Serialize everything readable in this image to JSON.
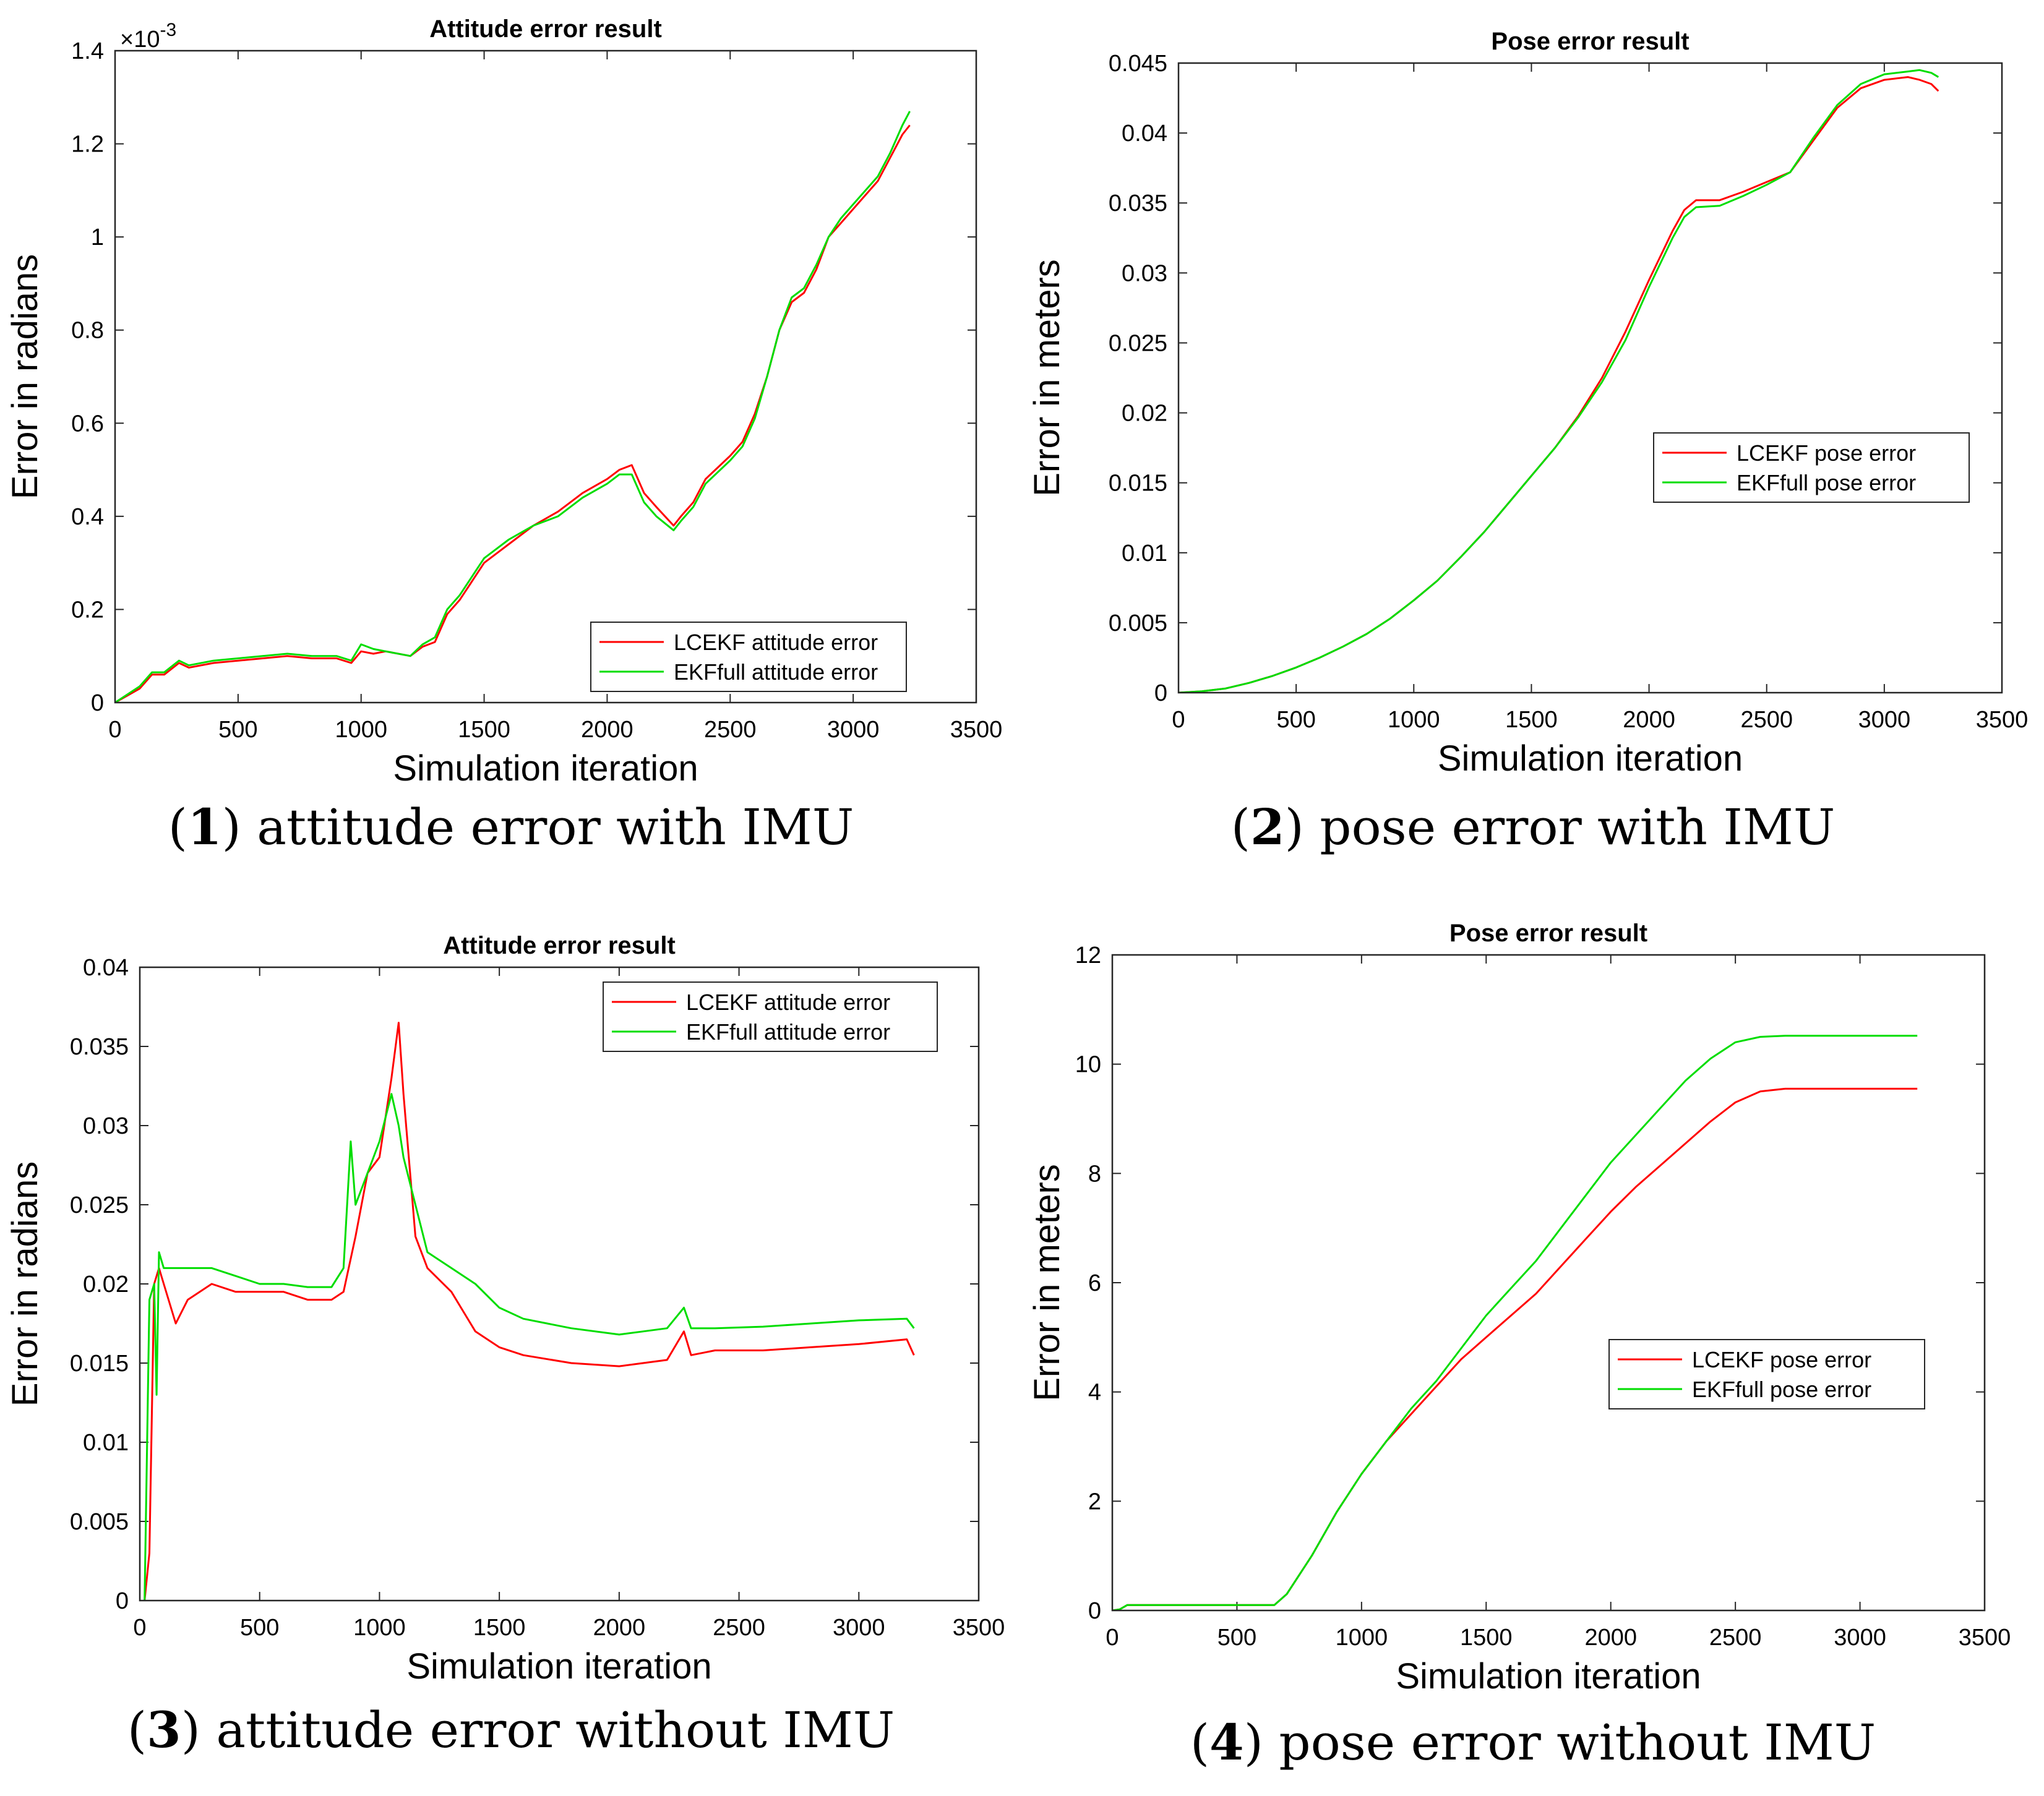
{
  "chart_data": [
    {
      "id": "c1",
      "type": "line",
      "title": "Attitude error result",
      "xlabel": "Simulation iteration",
      "ylabel": "Error in radians",
      "xlim": [
        0,
        3500
      ],
      "ylim": [
        0,
        1.4
      ],
      "xticks": [
        0,
        500,
        1000,
        1500,
        2000,
        2500,
        3000,
        3500
      ],
      "xticklabels": [
        "0",
        "500",
        "1000",
        "1500",
        "2000",
        "2500",
        "3000",
        "3500"
      ],
      "yticks": [
        0,
        0.2,
        0.4,
        0.6,
        0.8,
        1.0,
        1.2,
        1.4
      ],
      "yticklabels": [
        "0",
        "0.2",
        "0.4",
        "0.6",
        "0.8",
        "1",
        "1.2",
        "1.4"
      ],
      "exponent_label": "×10",
      "exponent_power": "-3",
      "legend_position": "bottom-right",
      "caption_num": "1",
      "caption_text": "attitude error with IMU",
      "series": [
        {
          "name": "LCEKF attitude error",
          "color": "#ff0000",
          "x": [
            0,
            100,
            150,
            200,
            260,
            300,
            400,
            500,
            600,
            700,
            800,
            900,
            960,
            1000,
            1050,
            1100,
            1200,
            1250,
            1300,
            1350,
            1400,
            1450,
            1500,
            1600,
            1700,
            1800,
            1850,
            1900,
            2000,
            2050,
            2100,
            2150,
            2200,
            2270,
            2300,
            2350,
            2400,
            2500,
            2550,
            2600,
            2650,
            2700,
            2750,
            2800,
            2850,
            2900,
            2950,
            3000,
            3050,
            3100,
            3150,
            3200,
            3230
          ],
          "y": [
            0.0,
            0.03,
            0.06,
            0.06,
            0.085,
            0.075,
            0.085,
            0.09,
            0.095,
            0.1,
            0.095,
            0.095,
            0.085,
            0.11,
            0.105,
            0.11,
            0.1,
            0.12,
            0.13,
            0.19,
            0.22,
            0.26,
            0.3,
            0.34,
            0.38,
            0.41,
            0.43,
            0.45,
            0.48,
            0.5,
            0.51,
            0.45,
            0.42,
            0.38,
            0.4,
            0.43,
            0.48,
            0.53,
            0.56,
            0.62,
            0.7,
            0.8,
            0.86,
            0.88,
            0.93,
            1.0,
            1.03,
            1.06,
            1.09,
            1.12,
            1.17,
            1.22,
            1.24
          ]
        },
        {
          "name": "EKFfull attitude error",
          "color": "#00dd00",
          "x": [
            0,
            100,
            150,
            200,
            260,
            300,
            400,
            500,
            600,
            700,
            800,
            900,
            960,
            1000,
            1050,
            1100,
            1200,
            1250,
            1300,
            1350,
            1400,
            1450,
            1500,
            1600,
            1700,
            1800,
            1850,
            1900,
            2000,
            2050,
            2100,
            2150,
            2200,
            2270,
            2300,
            2350,
            2400,
            2500,
            2550,
            2600,
            2650,
            2700,
            2750,
            2800,
            2850,
            2900,
            2950,
            3000,
            3050,
            3100,
            3150,
            3200,
            3230
          ],
          "y": [
            0.0,
            0.035,
            0.065,
            0.065,
            0.09,
            0.08,
            0.09,
            0.095,
            0.1,
            0.105,
            0.1,
            0.1,
            0.09,
            0.125,
            0.115,
            0.11,
            0.1,
            0.125,
            0.14,
            0.2,
            0.23,
            0.27,
            0.31,
            0.35,
            0.38,
            0.4,
            0.42,
            0.44,
            0.47,
            0.49,
            0.49,
            0.43,
            0.4,
            0.37,
            0.39,
            0.42,
            0.47,
            0.52,
            0.55,
            0.61,
            0.7,
            0.8,
            0.87,
            0.89,
            0.94,
            1.0,
            1.04,
            1.07,
            1.1,
            1.13,
            1.18,
            1.24,
            1.27
          ]
        }
      ]
    },
    {
      "id": "c2",
      "type": "line",
      "title": "Pose error result",
      "xlabel": "Simulation iteration",
      "ylabel": "Error in meters",
      "xlim": [
        0,
        3500
      ],
      "ylim": [
        0,
        0.045
      ],
      "xticks": [
        0,
        500,
        1000,
        1500,
        2000,
        2500,
        3000,
        3500
      ],
      "xticklabels": [
        "0",
        "500",
        "1000",
        "1500",
        "2000",
        "2500",
        "3000",
        "3500"
      ],
      "yticks": [
        0,
        0.005,
        0.01,
        0.015,
        0.02,
        0.025,
        0.03,
        0.035,
        0.04,
        0.045
      ],
      "yticklabels": [
        "0",
        "0.005",
        "0.01",
        "0.015",
        "0.02",
        "0.025",
        "0.03",
        "0.035",
        "0.04",
        "0.045"
      ],
      "legend_position": "right",
      "caption_num": "2",
      "caption_text": "pose error with IMU",
      "series": [
        {
          "name": "LCEKF pose error",
          "color": "#ff0000",
          "x": [
            0,
            100,
            200,
            300,
            400,
            500,
            600,
            700,
            800,
            900,
            1000,
            1100,
            1200,
            1300,
            1400,
            1500,
            1600,
            1700,
            1800,
            1900,
            2000,
            2100,
            2150,
            2200,
            2300,
            2400,
            2500,
            2600,
            2700,
            2800,
            2900,
            3000,
            3100,
            3150,
            3200,
            3230
          ],
          "y": [
            0,
            0.0001,
            0.0003,
            0.0007,
            0.0012,
            0.0018,
            0.0025,
            0.0033,
            0.0042,
            0.0053,
            0.0066,
            0.008,
            0.0097,
            0.0115,
            0.0135,
            0.0155,
            0.0175,
            0.0198,
            0.0225,
            0.0258,
            0.0295,
            0.033,
            0.0345,
            0.0352,
            0.0352,
            0.0358,
            0.0365,
            0.0372,
            0.0395,
            0.0418,
            0.0432,
            0.0438,
            0.044,
            0.0438,
            0.0435,
            0.043
          ]
        },
        {
          "name": "EKFfull pose error",
          "color": "#00dd00",
          "x": [
            0,
            100,
            200,
            300,
            400,
            500,
            600,
            700,
            800,
            900,
            1000,
            1100,
            1200,
            1300,
            1400,
            1500,
            1600,
            1700,
            1800,
            1900,
            2000,
            2100,
            2150,
            2200,
            2300,
            2400,
            2500,
            2600,
            2700,
            2800,
            2900,
            3000,
            3100,
            3150,
            3200,
            3230
          ],
          "y": [
            0,
            0.0001,
            0.0003,
            0.0007,
            0.0012,
            0.0018,
            0.0025,
            0.0033,
            0.0042,
            0.0053,
            0.0066,
            0.008,
            0.0097,
            0.0115,
            0.0135,
            0.0155,
            0.0175,
            0.0197,
            0.0222,
            0.0252,
            0.029,
            0.0325,
            0.034,
            0.0347,
            0.0348,
            0.0355,
            0.0363,
            0.0372,
            0.0397,
            0.042,
            0.0435,
            0.0442,
            0.0444,
            0.0445,
            0.0443,
            0.044
          ]
        }
      ]
    },
    {
      "id": "c3",
      "type": "line",
      "title": "Attitude error result",
      "xlabel": "Simulation iteration",
      "ylabel": "Error in radians",
      "xlim": [
        0,
        3500
      ],
      "ylim": [
        0,
        0.04
      ],
      "xticks": [
        0,
        500,
        1000,
        1500,
        2000,
        2500,
        3000,
        3500
      ],
      "xticklabels": [
        "0",
        "500",
        "1000",
        "1500",
        "2000",
        "2500",
        "3000",
        "3500"
      ],
      "yticks": [
        0,
        0.005,
        0.01,
        0.015,
        0.02,
        0.025,
        0.03,
        0.035,
        0.04
      ],
      "yticklabels": [
        "0",
        "0.005",
        "0.01",
        "0.015",
        "0.02",
        "0.025",
        "0.03",
        "0.035",
        "0.04"
      ],
      "legend_position": "top-right",
      "caption_num": "3",
      "caption_text": "attitude error without IMU",
      "series": [
        {
          "name": "LCEKF attitude error",
          "color": "#ff0000",
          "x": [
            20,
            40,
            60,
            80,
            100,
            150,
            200,
            300,
            400,
            500,
            600,
            700,
            800,
            850,
            900,
            950,
            1000,
            1050,
            1080,
            1100,
            1150,
            1200,
            1300,
            1400,
            1500,
            1600,
            1800,
            2000,
            2100,
            2200,
            2270,
            2300,
            2400,
            2600,
            2800,
            3000,
            3200,
            3230
          ],
          "y": [
            0.0,
            0.003,
            0.02,
            0.021,
            0.02,
            0.0175,
            0.019,
            0.02,
            0.0195,
            0.0195,
            0.0195,
            0.019,
            0.019,
            0.0195,
            0.023,
            0.027,
            0.028,
            0.033,
            0.0365,
            0.032,
            0.023,
            0.021,
            0.0195,
            0.017,
            0.016,
            0.0155,
            0.015,
            0.0148,
            0.015,
            0.0152,
            0.017,
            0.0155,
            0.0158,
            0.0158,
            0.016,
            0.0162,
            0.0165,
            0.0155
          ]
        },
        {
          "name": "EKFfull attitude error",
          "color": "#00dd00",
          "x": [
            20,
            40,
            60,
            70,
            80,
            100,
            150,
            200,
            300,
            400,
            500,
            600,
            700,
            800,
            850,
            880,
            900,
            950,
            1000,
            1050,
            1080,
            1100,
            1150,
            1200,
            1300,
            1400,
            1500,
            1600,
            1800,
            2000,
            2100,
            2200,
            2270,
            2300,
            2400,
            2600,
            2800,
            3000,
            3200,
            3230
          ],
          "y": [
            0.0,
            0.019,
            0.02,
            0.013,
            0.022,
            0.021,
            0.021,
            0.021,
            0.021,
            0.0205,
            0.02,
            0.02,
            0.0198,
            0.0198,
            0.021,
            0.029,
            0.025,
            0.027,
            0.029,
            0.032,
            0.03,
            0.028,
            0.025,
            0.022,
            0.021,
            0.02,
            0.0185,
            0.0178,
            0.0172,
            0.0168,
            0.017,
            0.0172,
            0.0185,
            0.0172,
            0.0172,
            0.0173,
            0.0175,
            0.0177,
            0.0178,
            0.0172
          ]
        }
      ]
    },
    {
      "id": "c4",
      "type": "line",
      "title": "Pose error result",
      "xlabel": "Simulation iteration",
      "ylabel": "Error in meters",
      "xlim": [
        0,
        3500
      ],
      "ylim": [
        0,
        12
      ],
      "xticks": [
        0,
        500,
        1000,
        1500,
        2000,
        2500,
        3000,
        3500
      ],
      "xticklabels": [
        "0",
        "500",
        "1000",
        "1500",
        "2000",
        "2500",
        "3000",
        "3500"
      ],
      "yticks": [
        0,
        2,
        4,
        6,
        8,
        10,
        12
      ],
      "yticklabels": [
        "0",
        "2",
        "4",
        "6",
        "8",
        "10",
        "12"
      ],
      "legend_position": "right",
      "caption_num": "4",
      "caption_text": "pose error without IMU",
      "series": [
        {
          "name": "LCEKF pose error",
          "color": "#ff0000",
          "x": [
            0,
            30,
            60,
            200,
            400,
            600,
            650,
            700,
            800,
            900,
            1000,
            1100,
            1200,
            1300,
            1400,
            1500,
            1600,
            1700,
            1800,
            1900,
            2000,
            2100,
            2200,
            2300,
            2400,
            2500,
            2600,
            2700,
            2800,
            3000,
            3200,
            3230
          ],
          "y": [
            0,
            0.02,
            0.1,
            0.1,
            0.1,
            0.1,
            0.1,
            0.3,
            1.0,
            1.8,
            2.5,
            3.1,
            3.6,
            4.1,
            4.6,
            5.0,
            5.4,
            5.8,
            6.3,
            6.8,
            7.3,
            7.75,
            8.15,
            8.55,
            8.95,
            9.3,
            9.5,
            9.55,
            9.55,
            9.55,
            9.55,
            9.55
          ]
        },
        {
          "name": "EKFfull pose error",
          "color": "#00dd00",
          "x": [
            0,
            30,
            60,
            200,
            400,
            600,
            650,
            700,
            800,
            900,
            1000,
            1100,
            1200,
            1300,
            1400,
            1500,
            1600,
            1700,
            1800,
            1900,
            2000,
            2100,
            2200,
            2300,
            2400,
            2500,
            2600,
            2700,
            2800,
            3000,
            3200,
            3230
          ],
          "y": [
            0,
            0.02,
            0.1,
            0.1,
            0.1,
            0.1,
            0.1,
            0.3,
            1.0,
            1.8,
            2.5,
            3.1,
            3.7,
            4.2,
            4.8,
            5.4,
            5.9,
            6.4,
            7.0,
            7.6,
            8.2,
            8.7,
            9.2,
            9.7,
            10.1,
            10.4,
            10.5,
            10.52,
            10.52,
            10.52,
            10.52,
            10.52
          ]
        }
      ]
    }
  ]
}
